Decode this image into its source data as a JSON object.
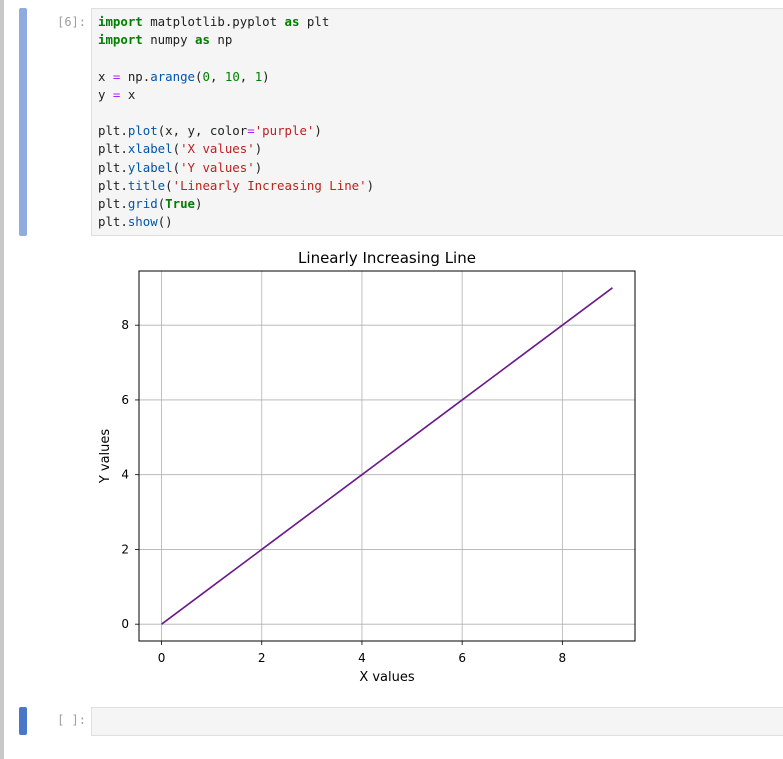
{
  "cells": [
    {
      "prompt": "[6]:",
      "code_lines": [
        [
          [
            "kw",
            "import"
          ],
          [
            "t",
            " matplotlib.pyplot "
          ],
          [
            "kw",
            "as"
          ],
          [
            "t",
            " plt"
          ]
        ],
        [
          [
            "kw",
            "import"
          ],
          [
            "t",
            " numpy "
          ],
          [
            "kw",
            "as"
          ],
          [
            "t",
            " np"
          ]
        ],
        [],
        [
          [
            "t",
            "x "
          ],
          [
            "op",
            "="
          ],
          [
            "t",
            " np."
          ],
          [
            "fn",
            "arange"
          ],
          [
            "t",
            "("
          ],
          [
            "num",
            "0"
          ],
          [
            "t",
            ", "
          ],
          [
            "num",
            "10"
          ],
          [
            "t",
            ", "
          ],
          [
            "num",
            "1"
          ],
          [
            "t",
            ")"
          ]
        ],
        [
          [
            "t",
            "y "
          ],
          [
            "op",
            "="
          ],
          [
            "t",
            " x"
          ]
        ],
        [],
        [
          [
            "t",
            "plt."
          ],
          [
            "fn",
            "plot"
          ],
          [
            "t",
            "(x, y, color"
          ],
          [
            "op",
            "="
          ],
          [
            "str",
            "'purple'"
          ],
          [
            "t",
            ")"
          ]
        ],
        [
          [
            "t",
            "plt."
          ],
          [
            "fn",
            "xlabel"
          ],
          [
            "t",
            "("
          ],
          [
            "str",
            "'X values'"
          ],
          [
            "t",
            ")"
          ]
        ],
        [
          [
            "t",
            "plt."
          ],
          [
            "fn",
            "ylabel"
          ],
          [
            "t",
            "("
          ],
          [
            "str",
            "'Y values'"
          ],
          [
            "t",
            ")"
          ]
        ],
        [
          [
            "t",
            "plt."
          ],
          [
            "fn",
            "title"
          ],
          [
            "t",
            "("
          ],
          [
            "str",
            "'Linearly Increasing Line'"
          ],
          [
            "t",
            ")"
          ]
        ],
        [
          [
            "t",
            "plt."
          ],
          [
            "fn",
            "grid"
          ],
          [
            "t",
            "("
          ],
          [
            "bi",
            "True"
          ],
          [
            "t",
            ")"
          ]
        ],
        [
          [
            "t",
            "plt."
          ],
          [
            "fn",
            "show"
          ],
          [
            "t",
            "()"
          ]
        ]
      ]
    },
    {
      "prompt": "[ ]:",
      "code_lines": []
    }
  ],
  "colors": {
    "line": "#6a1b8a",
    "grid": "#b0b0b0"
  },
  "chart_data": {
    "type": "line",
    "title": "Linearly Increasing Line",
    "xlabel": "X values",
    "ylabel": "Y values",
    "x": [
      0,
      1,
      2,
      3,
      4,
      5,
      6,
      7,
      8,
      9
    ],
    "y": [
      0,
      1,
      2,
      3,
      4,
      5,
      6,
      7,
      8,
      9
    ],
    "xlim": [
      -0.45,
      9.45
    ],
    "ylim": [
      -0.45,
      9.45
    ],
    "xticks": [
      0,
      2,
      4,
      6,
      8
    ],
    "yticks": [
      0,
      2,
      4,
      6,
      8
    ],
    "xtick_labels": [
      "0",
      "2",
      "4",
      "6",
      "8"
    ],
    "ytick_labels": [
      "0",
      "2",
      "4",
      "6",
      "8"
    ],
    "grid": true
  }
}
